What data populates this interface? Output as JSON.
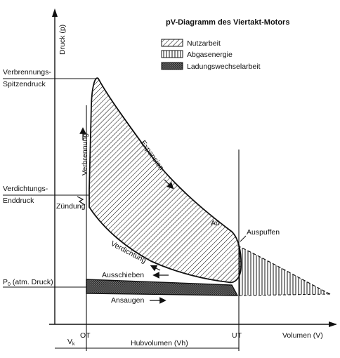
{
  "title": "pV-Diagramm des Viertakt-Motors",
  "legend": {
    "nutzarbeit": "Nutzarbeit",
    "abgasenergie": "Abgasenergie",
    "ladungswechselarbeit": "Ladungswechselarbeit"
  },
  "axes": {
    "y_label": "Druck (p)",
    "x_label": "Volumen (V)"
  },
  "pressure_levels": {
    "peak_line1": "Verbrennungs-",
    "peak_line2": "Spitzendruck",
    "compression_line1": "Verdichtungs-",
    "compression_line2": "Enddruck",
    "atm_main": "P",
    "atm_sub": "0",
    "atm_rest": " (atm. Druck)"
  },
  "strokes": {
    "verbrennung": "Verbrennung",
    "expansion": "Expansion",
    "verdichtung": "Verdichtung",
    "ausschieben": "Ausschieben",
    "ansaugen": "Ansaugen",
    "zuendung": "Zündung",
    "ao": "Aö",
    "auspuffen": "Auspuffen"
  },
  "x_markers": {
    "ot": "OT",
    "ut": "UT",
    "vk_main": "V",
    "vk_sub": "k",
    "hubvolumen": "Hubvolumen (Vh)"
  },
  "colors": {
    "ink": "#111111",
    "paper": "#ffffff"
  }
}
